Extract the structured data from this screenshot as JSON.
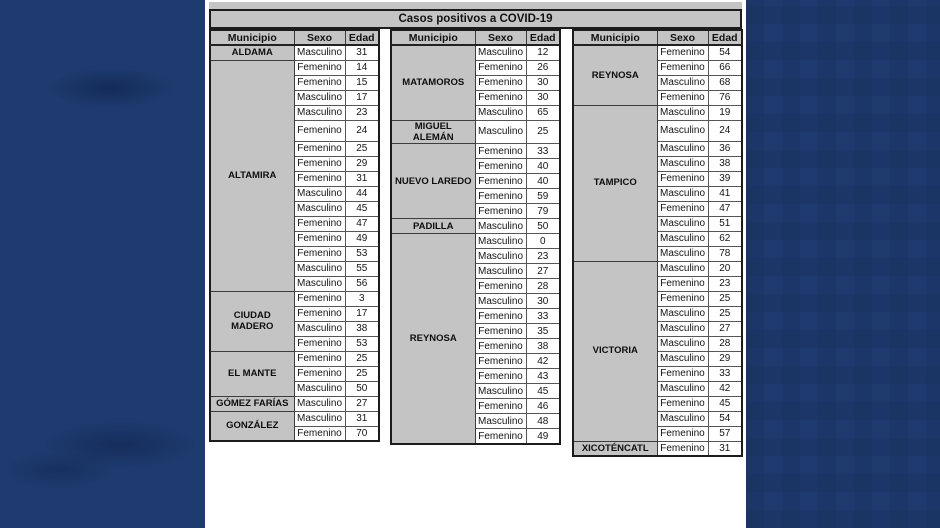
{
  "title": "Casos positivos a COVID-19",
  "columns": [
    "Municipio",
    "Sexo",
    "Edad"
  ],
  "colors": {
    "background": "#1e3a6e",
    "panel": "#ffffff",
    "cell_gray": "#c3c4c3",
    "border_dark": "#1c1c1c",
    "text": "#111111"
  },
  "groups": [
    {
      "municipalities": [
        {
          "name": "ALDAMA",
          "cases": [
            {
              "sexo": "Masculino",
              "edad": 31
            }
          ]
        },
        {
          "name": "ALTAMIRA",
          "cases": [
            {
              "sexo": "Femenino",
              "edad": 14
            },
            {
              "sexo": "Femenino",
              "edad": 15
            },
            {
              "sexo": "Masculino",
              "edad": 17
            },
            {
              "sexo": "Masculino",
              "edad": 23
            },
            {
              "sexo": "Femenino",
              "edad": 24
            },
            {
              "sexo": "Femenino",
              "edad": 25
            },
            {
              "sexo": "Femenino",
              "edad": 29
            },
            {
              "sexo": "Femenino",
              "edad": 31
            },
            {
              "sexo": "Masculino",
              "edad": 44
            },
            {
              "sexo": "Masculino",
              "edad": 45
            },
            {
              "sexo": "Femenino",
              "edad": 47
            },
            {
              "sexo": "Femenino",
              "edad": 49
            },
            {
              "sexo": "Femenino",
              "edad": 53
            },
            {
              "sexo": "Masculino",
              "edad": 55
            },
            {
              "sexo": "Masculino",
              "edad": 56
            }
          ]
        },
        {
          "name": "CIUDAD\nMADERO",
          "cases": [
            {
              "sexo": "Femenino",
              "edad": 3
            },
            {
              "sexo": "Femenino",
              "edad": 17
            },
            {
              "sexo": "Masculino",
              "edad": 38
            },
            {
              "sexo": "Femenino",
              "edad": 53
            }
          ]
        },
        {
          "name": "EL MANTE",
          "cases": [
            {
              "sexo": "Femenino",
              "edad": 25
            },
            {
              "sexo": "Femenino",
              "edad": 25
            },
            {
              "sexo": "Masculino",
              "edad": 50
            }
          ]
        },
        {
          "name": "GÓMEZ FARÍAS",
          "cases": [
            {
              "sexo": "Masculino",
              "edad": 27
            }
          ]
        },
        {
          "name": "GONZÁLEZ",
          "cases": [
            {
              "sexo": "Masculino",
              "edad": 31
            },
            {
              "sexo": "Femenino",
              "edad": 70
            }
          ]
        }
      ]
    },
    {
      "municipalities": [
        {
          "name": "MATAMOROS",
          "cases": [
            {
              "sexo": "Masculino",
              "edad": 12
            },
            {
              "sexo": "Femenino",
              "edad": 26
            },
            {
              "sexo": "Femenino",
              "edad": 30
            },
            {
              "sexo": "Femenino",
              "edad": 30
            },
            {
              "sexo": "Masculino",
              "edad": 65
            }
          ]
        },
        {
          "name": "MIGUEL\nALEMÁN",
          "cases": [
            {
              "sexo": "Masculino",
              "edad": 25
            }
          ]
        },
        {
          "name": "NUEVO LAREDO",
          "cases": [
            {
              "sexo": "Femenino",
              "edad": 33
            },
            {
              "sexo": "Femenino",
              "edad": 40
            },
            {
              "sexo": "Femenino",
              "edad": 40
            },
            {
              "sexo": "Femenino",
              "edad": 59
            },
            {
              "sexo": "Femenino",
              "edad": 79
            }
          ]
        },
        {
          "name": "PADILLA",
          "cases": [
            {
              "sexo": "Masculino",
              "edad": 50
            }
          ]
        },
        {
          "name": "REYNOSA",
          "cases": [
            {
              "sexo": "Masculino",
              "edad": 0
            },
            {
              "sexo": "Masculino",
              "edad": 23
            },
            {
              "sexo": "Masculino",
              "edad": 27
            },
            {
              "sexo": "Femenino",
              "edad": 28
            },
            {
              "sexo": "Masculino",
              "edad": 30
            },
            {
              "sexo": "Femenino",
              "edad": 33
            },
            {
              "sexo": "Femenino",
              "edad": 35
            },
            {
              "sexo": "Femenino",
              "edad": 38
            },
            {
              "sexo": "Femenino",
              "edad": 42
            },
            {
              "sexo": "Femenino",
              "edad": 43
            },
            {
              "sexo": "Masculino",
              "edad": 45
            },
            {
              "sexo": "Femenino",
              "edad": 46
            },
            {
              "sexo": "Masculino",
              "edad": 48
            },
            {
              "sexo": "Femenino",
              "edad": 49
            }
          ]
        }
      ]
    },
    {
      "municipalities": [
        {
          "name": "REYNOSA",
          "cases": [
            {
              "sexo": "Femenino",
              "edad": 54
            },
            {
              "sexo": "Femenino",
              "edad": 66
            },
            {
              "sexo": "Masculino",
              "edad": 68
            },
            {
              "sexo": "Femenino",
              "edad": 76
            }
          ]
        },
        {
          "name": "TAMPICO",
          "cases": [
            {
              "sexo": "Masculino",
              "edad": 19
            },
            {
              "sexo": "Masculino",
              "edad": 24
            },
            {
              "sexo": "Masculino",
              "edad": 36
            },
            {
              "sexo": "Masculino",
              "edad": 38
            },
            {
              "sexo": "Femenino",
              "edad": 39
            },
            {
              "sexo": "Masculino",
              "edad": 41
            },
            {
              "sexo": "Femenino",
              "edad": 47
            },
            {
              "sexo": "Masculino",
              "edad": 51
            },
            {
              "sexo": "Masculino",
              "edad": 62
            },
            {
              "sexo": "Masculino",
              "edad": 78
            }
          ]
        },
        {
          "name": "VICTORIA",
          "cases": [
            {
              "sexo": "Masculino",
              "edad": 20
            },
            {
              "sexo": "Femenino",
              "edad": 23
            },
            {
              "sexo": "Femenino",
              "edad": 25
            },
            {
              "sexo": "Masculino",
              "edad": 25
            },
            {
              "sexo": "Masculino",
              "edad": 27
            },
            {
              "sexo": "Masculino",
              "edad": 28
            },
            {
              "sexo": "Masculino",
              "edad": 29
            },
            {
              "sexo": "Femenino",
              "edad": 33
            },
            {
              "sexo": "Masculino",
              "edad": 42
            },
            {
              "sexo": "Femenino",
              "edad": 45
            },
            {
              "sexo": "Masculino",
              "edad": 54
            },
            {
              "sexo": "Femenino",
              "edad": 57
            }
          ]
        },
        {
          "name": "XICOTÉNCATL",
          "cases": [
            {
              "sexo": "Femenino",
              "edad": 31
            }
          ]
        }
      ]
    }
  ]
}
